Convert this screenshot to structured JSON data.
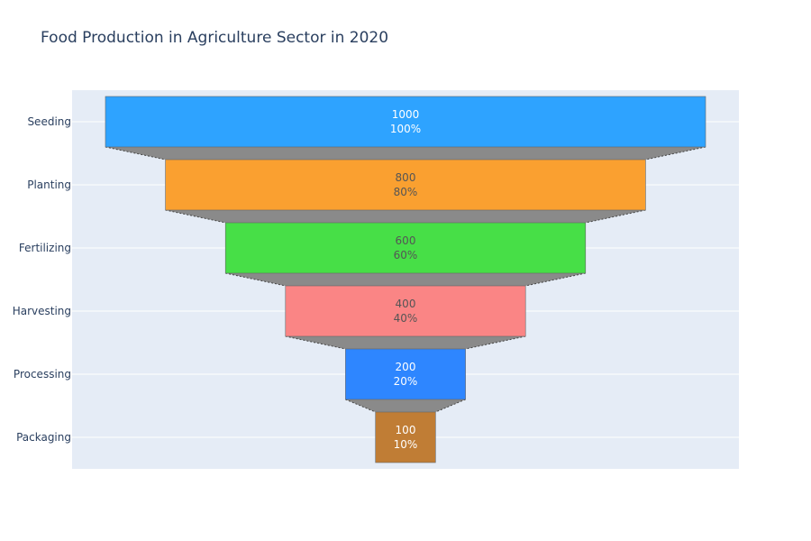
{
  "chart_data": {
    "type": "funnel",
    "title": "Food Production in Agriculture Sector in 2020",
    "stages": [
      "Seeding",
      "Planting",
      "Fertilizing",
      "Harvesting",
      "Processing",
      "Packaging"
    ],
    "values": [
      1000,
      800,
      600,
      400,
      200,
      100
    ],
    "percent_labels": [
      "100%",
      "80%",
      "60%",
      "40%",
      "20%",
      "10%"
    ],
    "colors": [
      "#2ea3ff",
      "#faa030",
      "#47df47",
      "#fa8585",
      "#2e86ff",
      "#c07d35"
    ],
    "text_colors": [
      "#ffffff",
      "#555555",
      "#555555",
      "#555555",
      "#ffffff",
      "#ffffff"
    ],
    "connector_color": "#8a8a8a",
    "plot_background": "#e5ecf6",
    "grid": true
  }
}
